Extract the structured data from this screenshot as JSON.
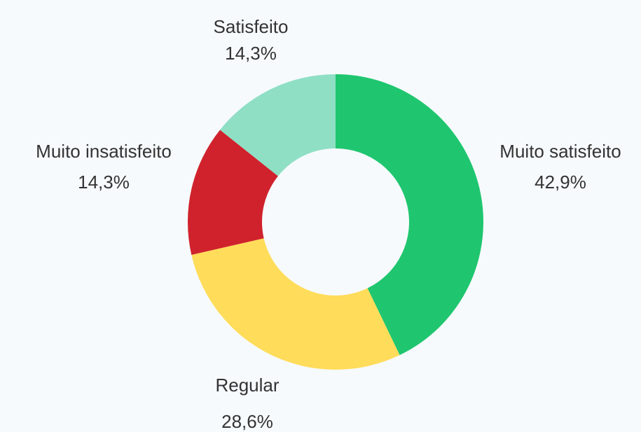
{
  "chart_data": {
    "type": "pie",
    "categories": [
      "Muito satisfeito",
      "Regular",
      "Muito insatisfeito",
      "Satisfeito"
    ],
    "values": [
      42.9,
      28.6,
      14.3,
      14.3
    ],
    "value_labels": [
      "42,9%",
      "28,6%",
      "14,3%",
      "14,3%"
    ],
    "colors": [
      "#1fc66f",
      "#ffdc5a",
      "#d0222c",
      "#8fdfc5"
    ],
    "donut": true
  }
}
